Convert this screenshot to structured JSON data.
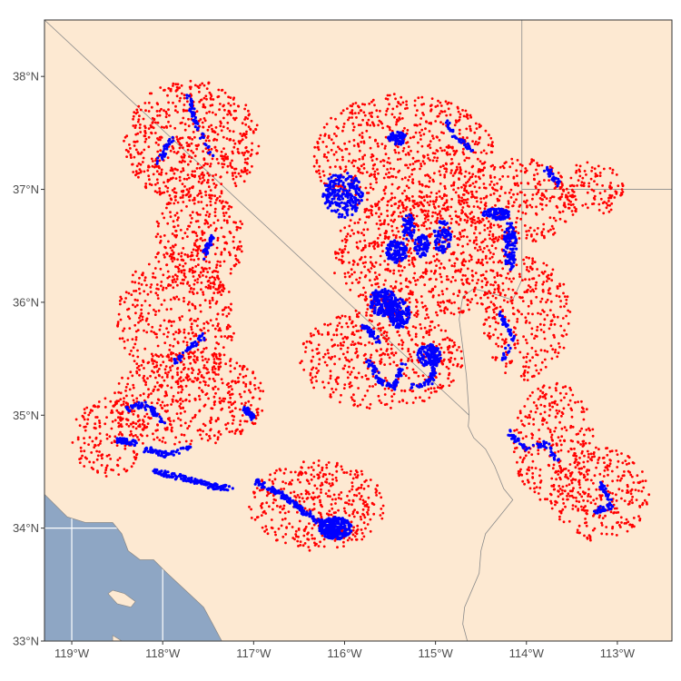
{
  "map": {
    "extent": {
      "lon": [
        -119.3,
        -112.4
      ],
      "lat": [
        33.0,
        38.5
      ]
    },
    "colors": {
      "land": "#fde9d2",
      "ocean": "#8ea6c4",
      "graticule": "#ffffff",
      "border": "#8a8a8a",
      "frame": "#333333",
      "red_points": "#ff0000",
      "blue_points": "#0000ff"
    },
    "x_ticks": [
      {
        "lon": -119,
        "label": "119°W"
      },
      {
        "lon": -118,
        "label": "118°W"
      },
      {
        "lon": -117,
        "label": "117°W"
      },
      {
        "lon": -116,
        "label": "116°W"
      },
      {
        "lon": -115,
        "label": "115°W"
      },
      {
        "lon": -114,
        "label": "114°W"
      },
      {
        "lon": -113,
        "label": "113°W"
      }
    ],
    "y_ticks": [
      {
        "lat": 33,
        "label": "33°N"
      },
      {
        "lat": 34,
        "label": "34°N"
      },
      {
        "lat": 35,
        "label": "35°N"
      },
      {
        "lat": 36,
        "label": "36°N"
      },
      {
        "lat": 37,
        "label": "37°N"
      },
      {
        "lat": 38,
        "label": "38°N"
      }
    ],
    "land_outline": [
      [
        -119.3,
        34.3
      ],
      [
        -119.05,
        34.1
      ],
      [
        -118.85,
        34.05
      ],
      [
        -118.55,
        34.05
      ],
      [
        -118.45,
        33.95
      ],
      [
        -118.38,
        33.8
      ],
      [
        -118.25,
        33.72
      ],
      [
        -118.1,
        33.72
      ],
      [
        -117.95,
        33.6
      ],
      [
        -117.75,
        33.45
      ],
      [
        -117.55,
        33.3
      ],
      [
        -117.45,
        33.15
      ],
      [
        -117.35,
        33.0
      ],
      [
        -112.4,
        33.0
      ],
      [
        -112.4,
        38.5
      ],
      [
        -119.3,
        38.5
      ]
    ],
    "islands": [
      [
        [
          -118.55,
          33.45
        ],
        [
          -118.42,
          33.42
        ],
        [
          -118.3,
          33.35
        ],
        [
          -118.35,
          33.3
        ],
        [
          -118.5,
          33.33
        ],
        [
          -118.6,
          33.42
        ]
      ],
      [
        [
          -118.55,
          33.05
        ],
        [
          -118.45,
          33.0
        ],
        [
          -118.4,
          32.9
        ],
        [
          -118.55,
          32.9
        ]
      ]
    ],
    "borders": [
      [
        [
          -119.3,
          38.5
        ],
        [
          -114.63,
          35.0
        ]
      ],
      [
        [
          -114.63,
          35.0
        ],
        [
          -114.64,
          34.9
        ],
        [
          -114.58,
          34.8
        ],
        [
          -114.45,
          34.7
        ],
        [
          -114.35,
          34.55
        ],
        [
          -114.25,
          34.35
        ],
        [
          -114.15,
          34.25
        ],
        [
          -114.3,
          34.1
        ],
        [
          -114.45,
          33.95
        ],
        [
          -114.5,
          33.8
        ],
        [
          -114.52,
          33.6
        ],
        [
          -114.6,
          33.45
        ],
        [
          -114.68,
          33.3
        ],
        [
          -114.7,
          33.15
        ],
        [
          -114.65,
          33.0
        ]
      ],
      [
        [
          -114.05,
          38.5
        ],
        [
          -114.05,
          37.0
        ],
        [
          -112.4,
          37.0
        ]
      ],
      [
        [
          -114.05,
          37.0
        ],
        [
          -114.05,
          36.2
        ],
        [
          -114.15,
          36.02
        ],
        [
          -114.38,
          36.08
        ],
        [
          -114.58,
          36.12
        ],
        [
          -114.7,
          36.05
        ],
        [
          -114.74,
          35.85
        ],
        [
          -114.7,
          35.6
        ],
        [
          -114.66,
          35.35
        ],
        [
          -114.63,
          35.0
        ]
      ]
    ],
    "red_regions": [
      {
        "lon": -117.68,
        "lat": 37.42,
        "rlon": 0.75,
        "rlat": 0.55,
        "n": 620
      },
      {
        "lon": -117.6,
        "lat": 36.55,
        "rlon": 0.5,
        "rlat": 0.48,
        "n": 300
      },
      {
        "lon": -117.85,
        "lat": 35.85,
        "rlon": 0.65,
        "rlat": 0.6,
        "n": 420
      },
      {
        "lon": -117.7,
        "lat": 35.15,
        "rlon": 0.85,
        "rlat": 0.42,
        "n": 480
      },
      {
        "lon": -118.6,
        "lat": 34.8,
        "rlon": 0.4,
        "rlat": 0.35,
        "n": 180
      },
      {
        "lon": -116.3,
        "lat": 34.2,
        "rlon": 0.75,
        "rlat": 0.4,
        "n": 420
      },
      {
        "lon": -115.35,
        "lat": 37.3,
        "rlon": 1.0,
        "rlat": 0.55,
        "n": 700
      },
      {
        "lon": -115.15,
        "lat": 36.4,
        "rlon": 1.0,
        "rlat": 0.55,
        "n": 750
      },
      {
        "lon": -115.6,
        "lat": 35.5,
        "rlon": 0.9,
        "rlat": 0.45,
        "n": 480
      },
      {
        "lon": -114.1,
        "lat": 36.9,
        "rlon": 0.65,
        "rlat": 0.38,
        "n": 320
      },
      {
        "lon": -113.3,
        "lat": 37.0,
        "rlon": 0.38,
        "rlat": 0.25,
        "n": 120
      },
      {
        "lon": -114.0,
        "lat": 35.85,
        "rlon": 0.5,
        "rlat": 0.55,
        "n": 300
      },
      {
        "lon": -113.7,
        "lat": 34.75,
        "rlon": 0.45,
        "rlat": 0.55,
        "n": 280
      },
      {
        "lon": -113.2,
        "lat": 34.3,
        "rlon": 0.55,
        "rlat": 0.42,
        "n": 300
      }
    ],
    "blue_clusters": [
      {
        "lon": -116.1,
        "lat": 34.0,
        "rlon": 0.18,
        "rlat": 0.1,
        "n": 260
      },
      {
        "lon": -116.02,
        "lat": 36.95,
        "rlon": 0.22,
        "rlat": 0.2,
        "n": 220
      },
      {
        "lon": -115.58,
        "lat": 36.0,
        "rlon": 0.15,
        "rlat": 0.12,
        "n": 170
      },
      {
        "lon": -115.4,
        "lat": 35.9,
        "rlon": 0.12,
        "rlat": 0.13,
        "n": 150
      },
      {
        "lon": -115.07,
        "lat": 35.53,
        "rlon": 0.13,
        "rlat": 0.1,
        "n": 130
      },
      {
        "lon": -115.43,
        "lat": 36.45,
        "rlon": 0.12,
        "rlat": 0.1,
        "n": 110
      },
      {
        "lon": -115.15,
        "lat": 36.5,
        "rlon": 0.08,
        "rlat": 0.1,
        "n": 80
      },
      {
        "lon": -114.93,
        "lat": 36.58,
        "rlon": 0.1,
        "rlat": 0.15,
        "n": 80
      },
      {
        "lon": -115.3,
        "lat": 36.67,
        "rlon": 0.07,
        "rlat": 0.12,
        "n": 60
      },
      {
        "lon": -114.33,
        "lat": 36.78,
        "rlon": 0.15,
        "rlat": 0.05,
        "n": 90
      },
      {
        "lon": -114.18,
        "lat": 36.5,
        "rlon": 0.07,
        "rlat": 0.22,
        "n": 110
      },
      {
        "lon": -115.42,
        "lat": 37.45,
        "rlon": 0.1,
        "rlat": 0.06,
        "n": 60
      }
    ],
    "blue_paths": [
      {
        "n": 140,
        "pts": [
          [
            -117.0,
            34.42
          ],
          [
            -116.7,
            34.3
          ],
          [
            -116.45,
            34.15
          ],
          [
            -116.2,
            34.02
          ]
        ]
      },
      {
        "n": 140,
        "pts": [
          [
            -118.1,
            34.5
          ],
          [
            -117.8,
            34.45
          ],
          [
            -117.5,
            34.38
          ],
          [
            -117.25,
            34.35
          ]
        ]
      },
      {
        "n": 60,
        "pts": [
          [
            -118.2,
            34.7
          ],
          [
            -117.95,
            34.65
          ],
          [
            -117.7,
            34.72
          ]
        ]
      },
      {
        "n": 60,
        "pts": [
          [
            -118.4,
            35.05
          ],
          [
            -118.2,
            35.1
          ],
          [
            -118.0,
            34.95
          ]
        ]
      },
      {
        "n": 50,
        "pts": [
          [
            -118.5,
            34.78
          ],
          [
            -118.3,
            34.75
          ]
        ]
      },
      {
        "n": 45,
        "pts": [
          [
            -117.9,
            35.45
          ],
          [
            -117.7,
            35.6
          ],
          [
            -117.55,
            35.7
          ]
        ]
      },
      {
        "n": 40,
        "pts": [
          [
            -117.1,
            35.05
          ],
          [
            -117.0,
            34.98
          ]
        ]
      },
      {
        "n": 50,
        "pts": [
          [
            -117.72,
            37.82
          ],
          [
            -117.62,
            37.55
          ],
          [
            -117.45,
            37.3
          ]
        ]
      },
      {
        "n": 35,
        "pts": [
          [
            -117.55,
            36.4
          ],
          [
            -117.45,
            36.6
          ]
        ]
      },
      {
        "n": 30,
        "pts": [
          [
            -118.05,
            37.25
          ],
          [
            -117.9,
            37.45
          ]
        ]
      },
      {
        "n": 60,
        "pts": [
          [
            -114.2,
            34.85
          ],
          [
            -114.0,
            34.7
          ],
          [
            -113.8,
            34.75
          ],
          [
            -113.65,
            34.6
          ]
        ]
      },
      {
        "n": 55,
        "pts": [
          [
            -113.2,
            34.4
          ],
          [
            -113.05,
            34.2
          ],
          [
            -113.25,
            34.15
          ]
        ]
      },
      {
        "n": 45,
        "pts": [
          [
            -114.3,
            35.9
          ],
          [
            -114.15,
            35.7
          ],
          [
            -114.25,
            35.5
          ]
        ]
      },
      {
        "n": 90,
        "pts": [
          [
            -115.75,
            35.5
          ],
          [
            -115.6,
            35.3
          ],
          [
            -115.45,
            35.25
          ],
          [
            -115.35,
            35.45
          ]
        ]
      },
      {
        "n": 50,
        "pts": [
          [
            -115.25,
            35.25
          ],
          [
            -115.05,
            35.3
          ],
          [
            -115.0,
            35.45
          ]
        ]
      },
      {
        "n": 40,
        "pts": [
          [
            -115.8,
            35.8
          ],
          [
            -115.6,
            35.65
          ]
        ]
      },
      {
        "n": 40,
        "pts": [
          [
            -114.9,
            37.6
          ],
          [
            -114.75,
            37.45
          ],
          [
            -114.6,
            37.35
          ]
        ]
      },
      {
        "n": 30,
        "pts": [
          [
            -113.8,
            37.2
          ],
          [
            -113.65,
            37.05
          ]
        ]
      }
    ]
  }
}
